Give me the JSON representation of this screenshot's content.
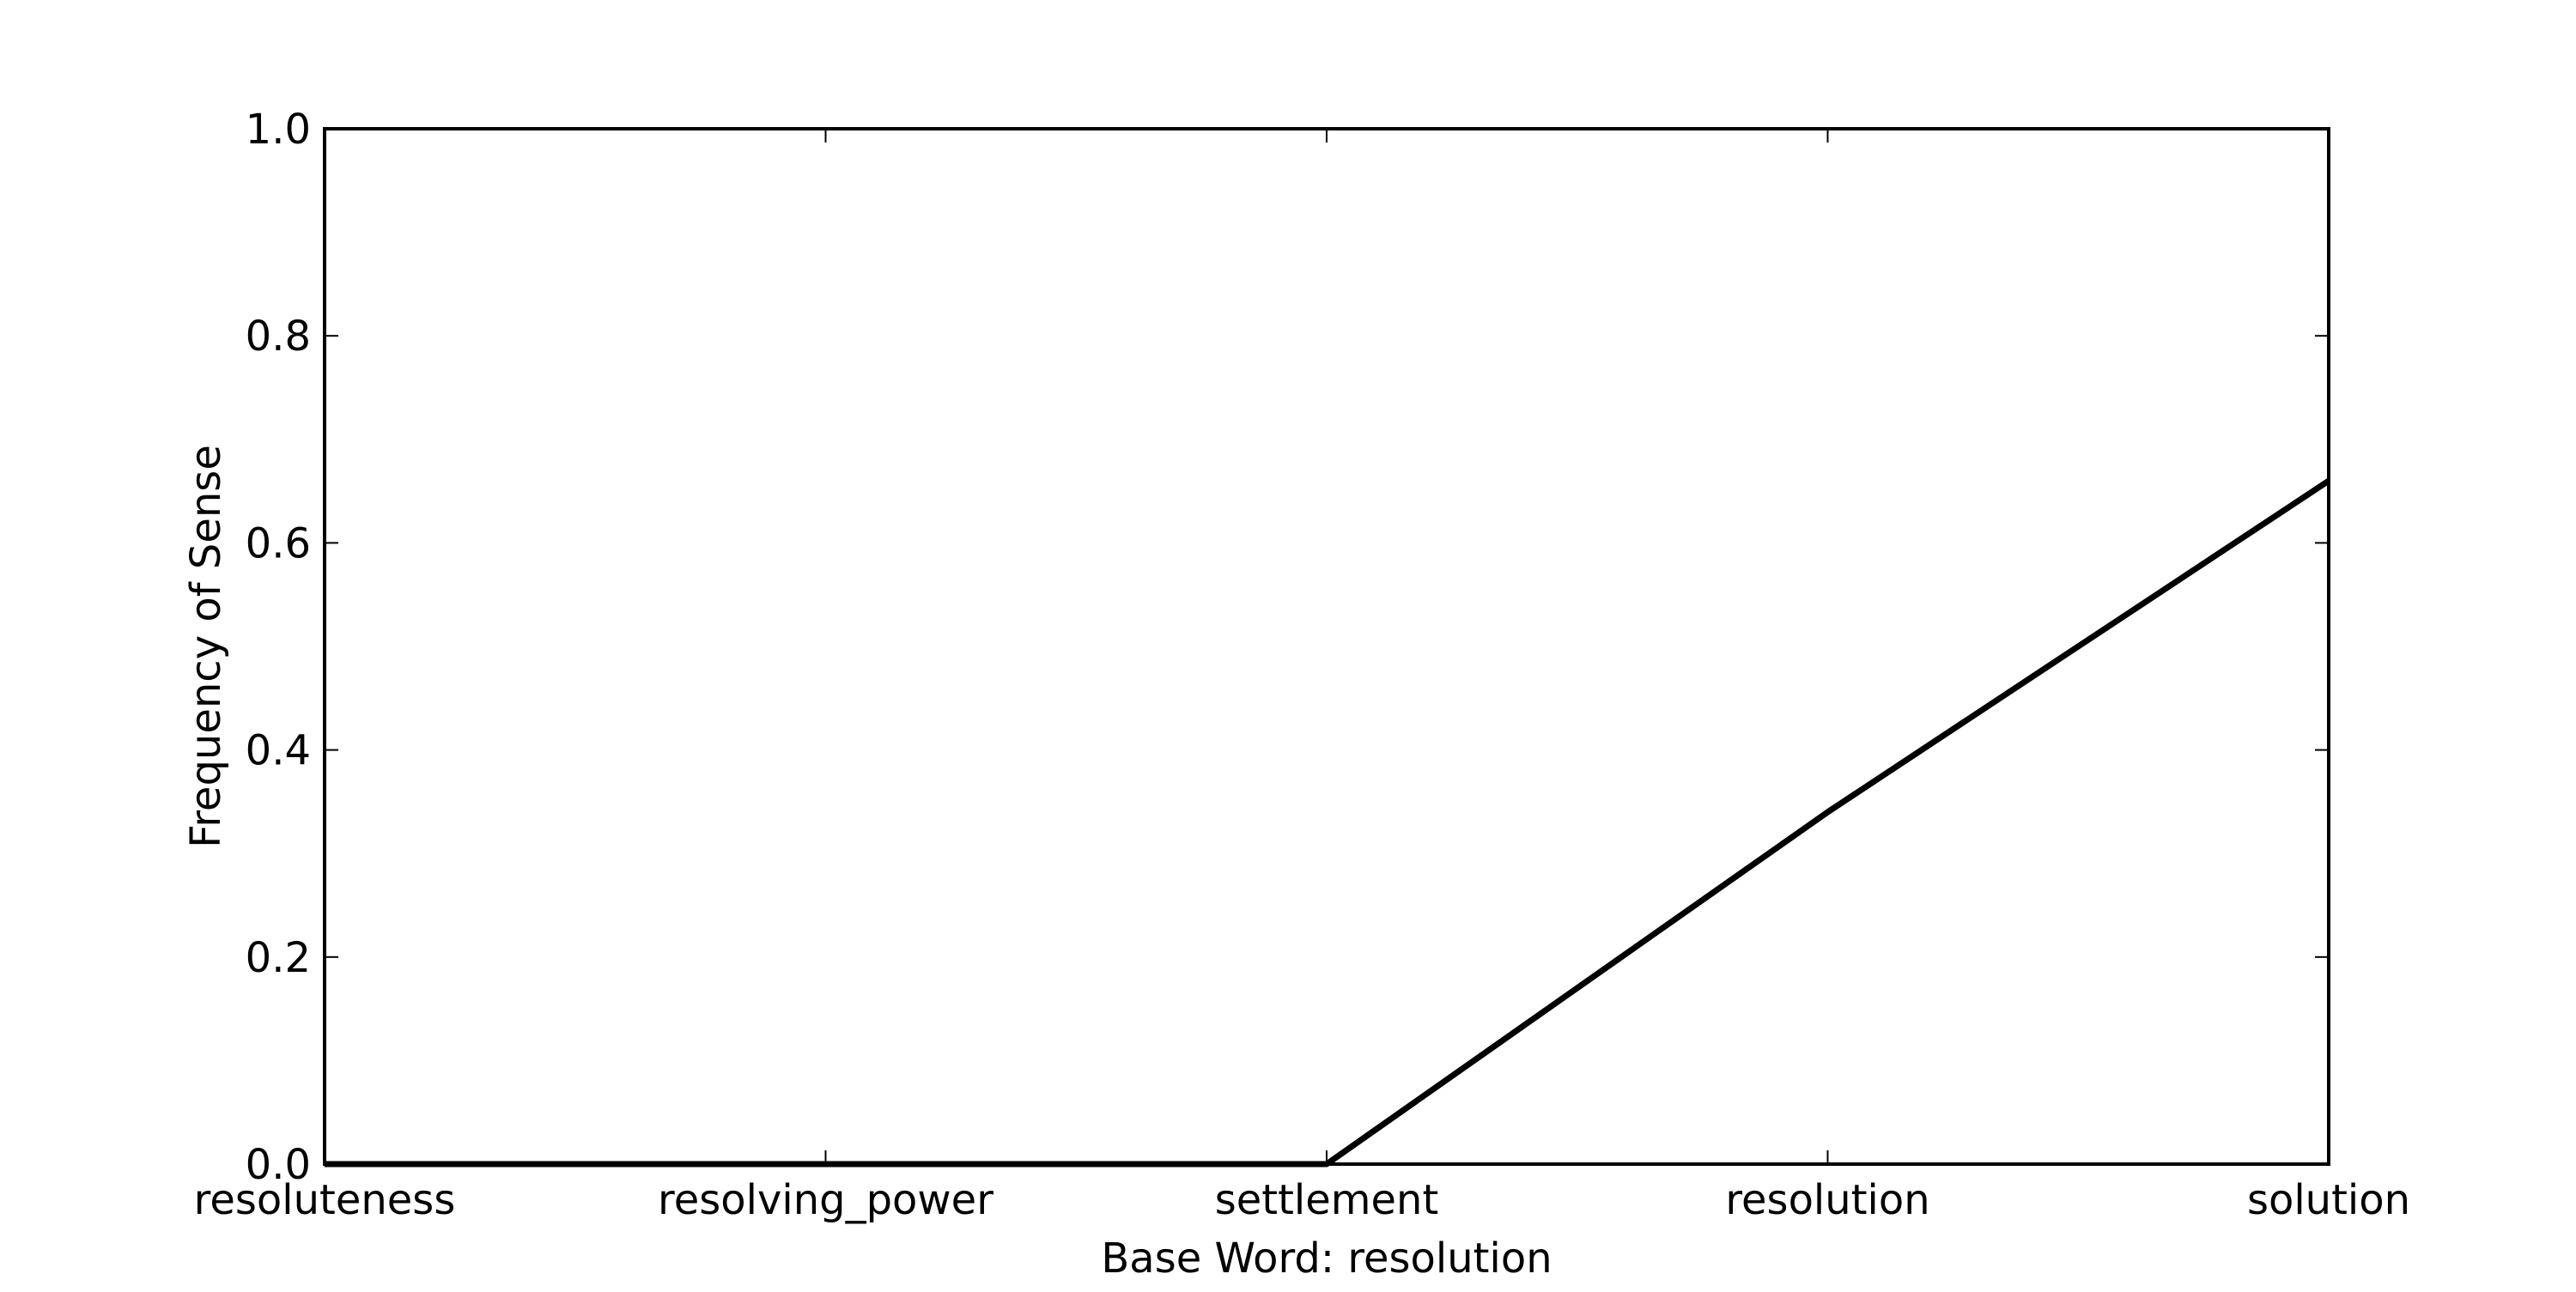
{
  "chart_data": {
    "type": "line",
    "categories": [
      "resoluteness",
      "resolving_power",
      "settlement",
      "resolution",
      "solution"
    ],
    "series": [
      {
        "values": [
          0.0,
          0.0,
          0.0,
          0.34,
          0.66
        ]
      }
    ],
    "xlabel": "Base Word: resolution",
    "ylabel": "Frequency of Sense",
    "ylim": [
      0.0,
      1.0
    ],
    "yticks": [
      "0.0",
      "0.2",
      "0.4",
      "0.6",
      "0.8",
      "1.0"
    ],
    "grid": false,
    "line_color": "#000000"
  }
}
